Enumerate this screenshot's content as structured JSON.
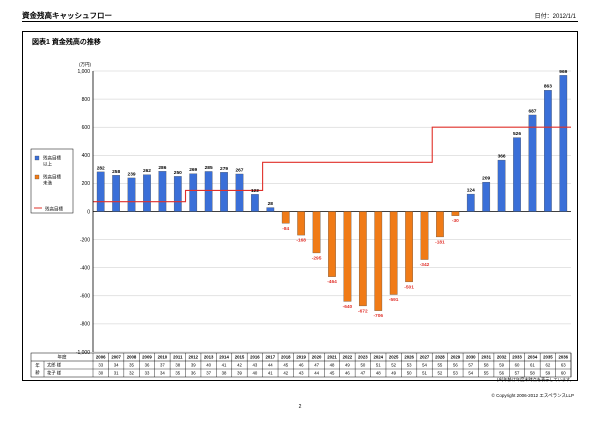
{
  "document": {
    "title": "資金残高キャッシュフロー",
    "date": "日付：2012/1/1",
    "figure_title": "図表1  資金残高の推移",
    "footnote": "(※)年齢は年度末時点を表示しています。",
    "copyright": "© Copyright 2006-2012 エスペランスLLP",
    "page_number": "2"
  },
  "table": {
    "year_header": "年度",
    "group_label": [
      "年",
      "齢"
    ],
    "rows": [
      {
        "label": "太郎 様",
        "values": [
          33,
          34,
          35,
          36,
          37,
          38,
          39,
          40,
          41,
          42,
          43,
          44,
          45,
          46,
          47,
          48,
          49,
          50,
          51,
          52,
          53,
          54,
          55,
          56,
          57,
          58,
          59,
          60,
          61,
          62,
          63
        ]
      },
      {
        "label": "花子 様",
        "values": [
          30,
          31,
          32,
          33,
          34,
          35,
          36,
          37,
          38,
          39,
          40,
          41,
          42,
          43,
          44,
          45,
          46,
          47,
          48,
          49,
          50,
          51,
          52,
          53,
          54,
          55,
          56,
          57,
          58,
          59,
          60
        ]
      }
    ]
  },
  "colors": {
    "positive": "#3A6FD8",
    "negative": "#F07B17",
    "target": "#E0302A",
    "neg_label": "#E0302A"
  },
  "chart_data": {
    "type": "bar",
    "ylabel": "(万円)",
    "ylim": [
      -1000,
      1000
    ],
    "yticks": [
      -1000,
      -800,
      -600,
      -400,
      -200,
      0,
      200,
      400,
      600,
      800,
      1000
    ],
    "ytick_labels": [
      "-1,000",
      "-800",
      "-600",
      "-400",
      "-200",
      "0",
      "200",
      "400",
      "600",
      "800",
      "1,000"
    ],
    "grid": true,
    "legend_position": "left",
    "categories": [
      "2006",
      "2007",
      "2008",
      "2009",
      "2010",
      "2011",
      "2012",
      "2013",
      "2014",
      "2015",
      "2016",
      "2017",
      "2018",
      "2019",
      "2020",
      "2021",
      "2022",
      "2023",
      "2024",
      "2025",
      "2026",
      "2027",
      "2028",
      "2029",
      "2030",
      "2031",
      "2032",
      "2033",
      "2034",
      "2035",
      "2036"
    ],
    "series": [
      {
        "name": "資金残高",
        "values": [
          282,
          258,
          239,
          262,
          286,
          250,
          269,
          285,
          279,
          267,
          122,
          28,
          -84,
          -168,
          -295,
          -464,
          -640,
          -672,
          -706,
          -591,
          -501,
          -342,
          -181,
          -30,
          124,
          209,
          366,
          526,
          687,
          863,
          969
        ]
      },
      {
        "name": "残高目標",
        "type": "line",
        "values": [
          70,
          70,
          70,
          70,
          70,
          70,
          150,
          150,
          150,
          150,
          150,
          350,
          350,
          350,
          350,
          350,
          350,
          350,
          350,
          350,
          350,
          350,
          600,
          600,
          600,
          600,
          600,
          600,
          600,
          600,
          600
        ]
      }
    ],
    "legend": [
      "残高目標以上",
      "残高目標未満",
      "残高目標"
    ]
  }
}
